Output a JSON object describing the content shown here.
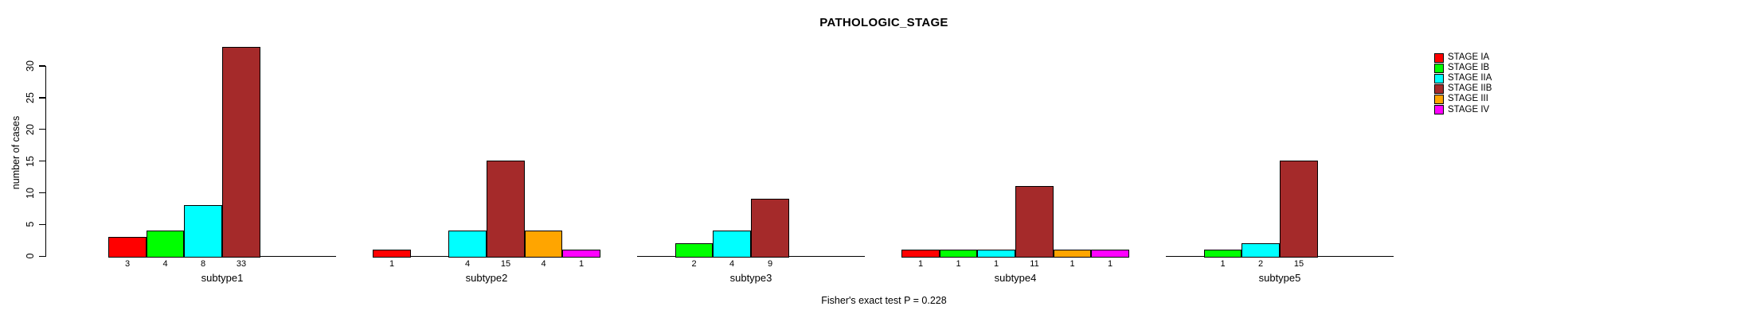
{
  "chart_data": {
    "type": "bar",
    "title": "PATHOLOGIC_STAGE",
    "ylabel": "number of cases",
    "annotation": "Fisher's exact test P = 0.228",
    "ylim": [
      0,
      33
    ],
    "yticks": [
      0,
      5,
      10,
      15,
      20,
      25,
      30
    ],
    "grid": false,
    "legend_position": "outside-top-right",
    "stages": [
      {
        "label": "STAGE IA",
        "color": "#FF0000"
      },
      {
        "label": "STAGE IB",
        "color": "#00FF00"
      },
      {
        "label": "STAGE IIA",
        "color": "#00FFFF"
      },
      {
        "label": "STAGE IIB",
        "color": "#A52A2A"
      },
      {
        "label": "STAGE III",
        "color": "#FFA500"
      },
      {
        "label": "STAGE IV",
        "color": "#FF00FF"
      }
    ],
    "groups": [
      {
        "label": "subtype1",
        "values": [
          3,
          4,
          8,
          33,
          0,
          0
        ]
      },
      {
        "label": "subtype2",
        "values": [
          1,
          0,
          4,
          15,
          4,
          1
        ]
      },
      {
        "label": "subtype3",
        "values": [
          0,
          2,
          4,
          9,
          0,
          0
        ]
      },
      {
        "label": "subtype4",
        "values": [
          1,
          1,
          1,
          11,
          1,
          1
        ]
      },
      {
        "label": "subtype5",
        "values": [
          0,
          1,
          2,
          15,
          0,
          0
        ]
      }
    ]
  }
}
